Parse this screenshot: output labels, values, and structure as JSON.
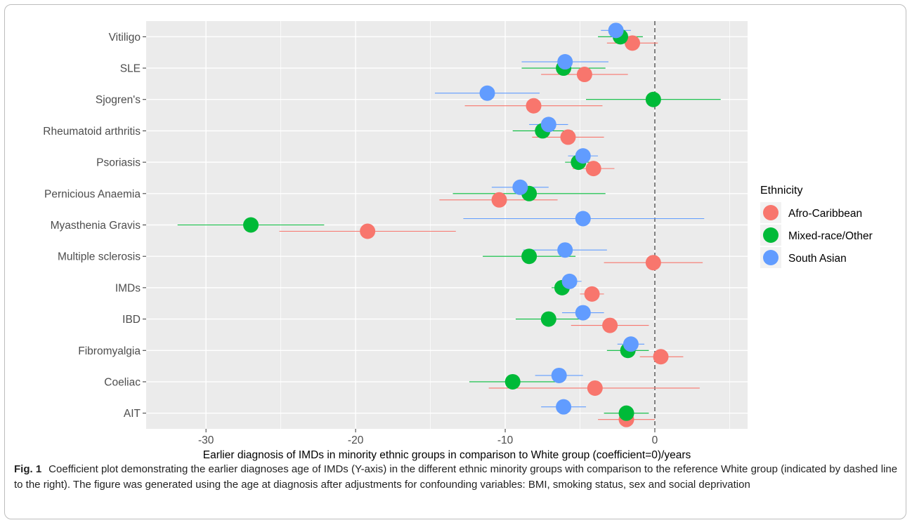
{
  "chart_data": {
    "type": "scatter",
    "categories": [
      "Vitiligo",
      "SLE",
      "Sjogren's",
      "Rheumatoid arthritis",
      "Psoriasis",
      "Pernicious Anaemia",
      "Myasthenia Gravis",
      "Multiple sclerosis",
      "IMDs",
      "IBD",
      "Fibromyalgia",
      "Coeliac",
      "AIT"
    ],
    "xlabel": "Earlier diagnosis of IMDs in minority ethnic groups in comparison to White group (coefficient=0)/years",
    "ylabel": "",
    "xlim": [
      -34,
      6.2
    ],
    "xticks": [
      -30,
      -20,
      -10,
      0
    ],
    "xtick_labels": [
      "-30",
      "-20",
      "-10",
      "0"
    ],
    "reference_line": 0,
    "legend": {
      "title": "Ethnicity",
      "position": "right"
    },
    "series": [
      {
        "name": "Afro-Caribbean",
        "color": "#F8766D",
        "est": [
          -1.5,
          -4.7,
          -8.1,
          -5.8,
          -4.1,
          -10.4,
          -19.2,
          -0.1,
          -4.2,
          -3.0,
          0.4,
          -4.0,
          -1.9
        ],
        "lo": [
          -3.2,
          -7.6,
          -12.7,
          -8.2,
          -5.5,
          -14.4,
          -25.1,
          -3.4,
          -5.0,
          -5.6,
          -1.0,
          -11.1,
          -3.8
        ],
        "hi": [
          0.2,
          -1.8,
          -3.5,
          -3.4,
          -2.7,
          -6.5,
          -13.3,
          3.2,
          -3.4,
          -0.4,
          1.9,
          3.0,
          0.0
        ]
      },
      {
        "name": "Mixed-race/Other",
        "color": "#00BA38",
        "est": [
          -2.3,
          -6.1,
          -0.1,
          -7.5,
          -5.1,
          -8.4,
          -27.0,
          -8.4,
          -6.2,
          -7.1,
          -1.8,
          -9.5,
          -1.9
        ],
        "lo": [
          -3.8,
          -8.9,
          -4.6,
          -9.5,
          -6.0,
          -13.5,
          -31.9,
          -11.5,
          -6.9,
          -9.3,
          -3.2,
          -12.4,
          -3.4
        ],
        "hi": [
          -0.8,
          -3.3,
          4.4,
          -5.5,
          -4.2,
          -3.3,
          -22.1,
          -5.3,
          -5.5,
          -4.9,
          -0.4,
          -6.6,
          -0.4
        ]
      },
      {
        "name": "South Asian",
        "color": "#619CFF",
        "est": [
          -2.6,
          -6.0,
          -11.2,
          -7.1,
          -4.8,
          -9.0,
          -4.8,
          -6.0,
          -5.7,
          -4.8,
          -1.6,
          -6.4,
          -6.1
        ],
        "lo": [
          -3.6,
          -8.9,
          -14.7,
          -8.4,
          -5.8,
          -10.9,
          -12.8,
          -8.8,
          -6.5,
          -6.2,
          -2.5,
          -8.0,
          -7.6
        ],
        "hi": [
          -1.6,
          -3.1,
          -7.7,
          -5.8,
          -3.8,
          -7.1,
          3.3,
          -3.2,
          -4.9,
          -3.4,
          -0.7,
          -4.8,
          -4.6
        ]
      }
    ]
  },
  "caption": {
    "label": "Fig. 1",
    "text": "Coefficient plot demonstrating the earlier diagnoses age of IMDs (Y-axis) in the different ethnic minority groups with comparison to the reference White group (indicated by dashed line to the right). The figure was generated using the age at diagnosis after adjustments for confounding variables: BMI, smoking status, sex and social deprivation"
  }
}
